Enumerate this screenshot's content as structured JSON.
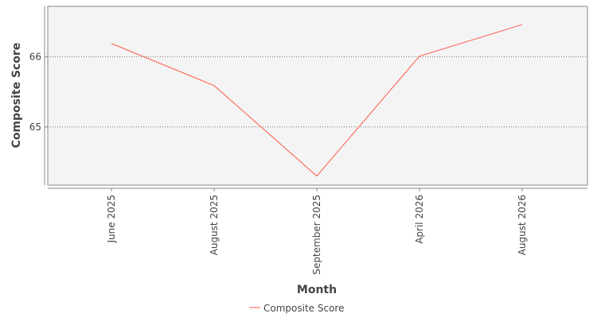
{
  "chart_data": {
    "type": "line",
    "title": "",
    "xlabel": "Month",
    "ylabel": "Composite Score",
    "categories": [
      "June 2025",
      "August 2025",
      "September 2025",
      "April 2026",
      "August 2026"
    ],
    "series": [
      {
        "name": "Composite Score",
        "values": [
          66.19,
          65.59,
          64.3,
          66.01,
          66.46
        ]
      }
    ],
    "y_ticks": [
      65,
      66
    ],
    "ylim": [
      64.17,
      66.72
    ],
    "grid": true,
    "legend_position": "bottom-center",
    "colors": {
      "series_line": "#ff5a4a",
      "plot_background": "#f4f4f4",
      "grid_line": "#777777",
      "axis_line": "#888888",
      "text": "#444444"
    }
  }
}
